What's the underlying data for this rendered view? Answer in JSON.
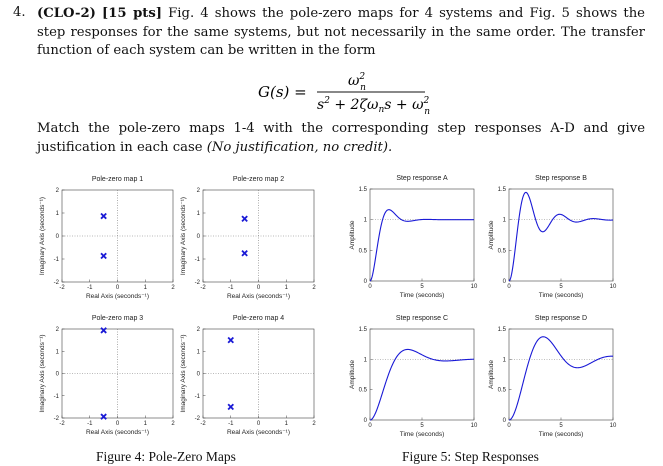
{
  "question": {
    "number": "4.",
    "tag": "(CLO-2)",
    "points": "[15 pts]",
    "intro": "Fig. 4 shows the pole-zero maps for 4 systems and Fig. 5 shows the step responses for the same systems, but not necessarily in the same order. The transfer function of each system can be written in the form",
    "formula_lhs": "G(s) =",
    "instruction": "Match the pole-zero maps 1-4 with the corresponding step responses A-D and give justification in each case",
    "note": "(No justification, no credit)."
  },
  "figure4_caption": "Figure 4: Pole-Zero Maps",
  "figure5_caption": "Figure 5: Step Responses",
  "chart_data": [
    {
      "type": "scatter",
      "title": "Pole-zero map 1",
      "xlabel": "Real Axis (seconds⁻¹)",
      "ylabel": "Imaginary Axis (seconds⁻¹)",
      "xlim": [
        -2,
        2
      ],
      "ylim": [
        -2,
        2
      ],
      "xticks": [
        "-2",
        "-1",
        "0",
        "1",
        "2"
      ],
      "yticks": [
        "-2",
        "-1",
        "0",
        "1",
        "2"
      ],
      "marker": "x",
      "poles": [
        {
          "x": -0.5,
          "y": 0.866
        },
        {
          "x": -0.5,
          "y": -0.866
        }
      ]
    },
    {
      "type": "scatter",
      "title": "Pole-zero map 2",
      "xlabel": "Real Axis (seconds⁻¹)",
      "ylabel": "Imaginary Axis (seconds⁻¹)",
      "xlim": [
        -2,
        2
      ],
      "ylim": [
        -2,
        2
      ],
      "xticks": [
        "-2",
        "-1",
        "0",
        "1",
        "2"
      ],
      "yticks": [
        "-2",
        "-1",
        "0",
        "1",
        "2"
      ],
      "marker": "x",
      "poles": [
        {
          "x": -0.5,
          "y": 0.75
        },
        {
          "x": -0.5,
          "y": -0.75
        }
      ]
    },
    {
      "type": "scatter",
      "title": "Pole-zero map 3",
      "xlabel": "Real Axis (seconds⁻¹)",
      "ylabel": "Imaginary Axis (seconds⁻¹)",
      "xlim": [
        -2,
        2
      ],
      "ylim": [
        -2,
        2
      ],
      "xticks": [
        "-2",
        "-1",
        "0",
        "1",
        "2"
      ],
      "yticks": [
        "-2",
        "-1",
        "0",
        "1",
        "2"
      ],
      "marker": "x",
      "poles": [
        {
          "x": -0.5,
          "y": 1.94
        },
        {
          "x": -0.5,
          "y": -1.94
        }
      ]
    },
    {
      "type": "scatter",
      "title": "Pole-zero map 4",
      "xlabel": "Real Axis (seconds⁻¹)",
      "ylabel": "Imaginary Axis (seconds⁻¹)",
      "xlim": [
        -2,
        2
      ],
      "ylim": [
        -2,
        2
      ],
      "xticks": [
        "-2",
        "-1",
        "0",
        "1",
        "2"
      ],
      "yticks": [
        "-2",
        "-1",
        "0",
        "1",
        "2"
      ],
      "marker": "x",
      "poles": [
        {
          "x": -1,
          "y": 1.5
        },
        {
          "x": -1,
          "y": -1.5
        }
      ]
    },
    {
      "type": "line",
      "title": "Step response A",
      "xlabel": "Time (seconds)",
      "ylabel": "Amplitude",
      "xlim": [
        0,
        10
      ],
      "ylim": [
        0,
        1.5
      ],
      "xticks": [
        "0",
        "5",
        "10"
      ],
      "yticks": [
        "0",
        "0.5",
        "1",
        "1.5"
      ],
      "reference": 1,
      "series": [
        {
          "wn": 2,
          "zeta": 0.5
        }
      ]
    },
    {
      "type": "line",
      "title": "Step response B",
      "xlabel": "Time (seconds)",
      "ylabel": "Amplitude",
      "xlim": [
        0,
        10
      ],
      "ylim": [
        0,
        1.5
      ],
      "xticks": [
        "0",
        "5",
        "10"
      ],
      "yticks": [
        "0",
        "0.5",
        "1",
        "1.5"
      ],
      "reference": 1,
      "series": [
        {
          "wn": 2,
          "zeta": 0.25
        }
      ]
    },
    {
      "type": "line",
      "title": "Step response C",
      "xlabel": "Time (seconds)",
      "ylabel": "Amplitude",
      "xlim": [
        0,
        10
      ],
      "ylim": [
        0,
        1.5
      ],
      "xticks": [
        "0",
        "5",
        "10"
      ],
      "yticks": [
        "0",
        "0.5",
        "1",
        "1.5"
      ],
      "reference": 1,
      "series": [
        {
          "wn": 1,
          "zeta": 0.5
        }
      ]
    },
    {
      "type": "line",
      "title": "Step response D",
      "xlabel": "Time (seconds)",
      "ylabel": "Amplitude",
      "xlim": [
        0,
        10
      ],
      "ylim": [
        0,
        1.5
      ],
      "xticks": [
        "0",
        "5",
        "10"
      ],
      "yticks": [
        "0",
        "0.5",
        "1",
        "1.5"
      ],
      "reference": 1,
      "series": [
        {
          "wn": 1,
          "zeta": 0.3
        }
      ]
    }
  ]
}
